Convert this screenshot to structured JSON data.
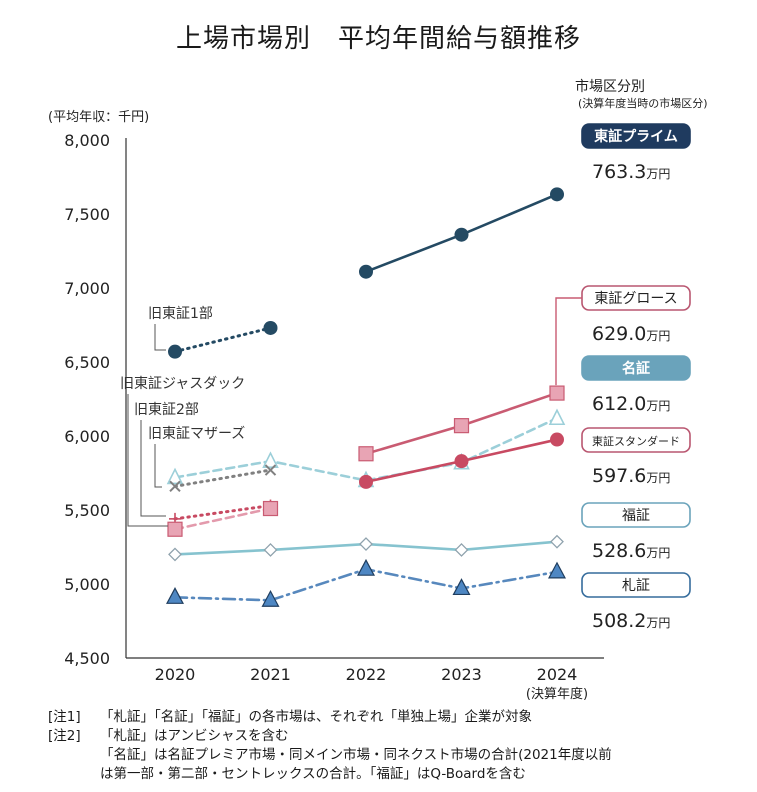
{
  "page": {
    "title": "上場市場別　平均年間給与額推移",
    "notes": [
      {
        "tag": "[注1]",
        "text": "「札証」「名証」「福証」の各市場は、それぞれ「単独上場」企業が対象"
      },
      {
        "tag": "[注2]",
        "text": "「札証」はアンビシャスを含む"
      },
      {
        "tag": "",
        "text": "「名証」は名証プレミア市場・同メイン市場・同ネクスト市場の合計(2021年度以前"
      },
      {
        "tag": "",
        "text": "は第一部・第二部・セントレックスの合計。「福証」はQ-Boardを含む"
      }
    ]
  },
  "chart_data": {
    "type": "line",
    "ylabel": "(平均年収：千円)",
    "xlabel_note": "(決算年度)",
    "legend_title": "市場区分別",
    "legend_subtitle": "(決算年度当時の市場区分)",
    "ylim": [
      4500,
      8000
    ],
    "yticks": [
      8000,
      7500,
      7000,
      6500,
      6000,
      5500,
      5000,
      4500
    ],
    "ytick_labels": [
      "8,000",
      "7,500",
      "7,000",
      "6,500",
      "6,000",
      "5,500",
      "5,000",
      "4,500"
    ],
    "categories": [
      "2020",
      "2021",
      "2022",
      "2023",
      "2024"
    ],
    "unit": "万円",
    "series": [
      {
        "name": "東証プライム",
        "color": "#244a63",
        "values": [
          null,
          null,
          7110,
          7360,
          7633
        ],
        "latest": "763.3",
        "line": "solid",
        "marker": "circle"
      },
      {
        "name": "東証グロース",
        "color": "#c95b72",
        "values": [
          null,
          null,
          5880,
          6070,
          6290
        ],
        "latest": "629.0",
        "line": "solid",
        "marker": "square"
      },
      {
        "name": "名証",
        "color": "#9ccfd9",
        "values": [
          5720,
          5830,
          5700,
          5820,
          6120
        ],
        "latest": "612.0",
        "line": "dashed",
        "marker": "triangle-open"
      },
      {
        "name": "東証スタンダード",
        "color": "#c84a62",
        "values": [
          null,
          null,
          5690,
          5830,
          5976
        ],
        "latest": "597.6",
        "line": "solid",
        "marker": "circle"
      },
      {
        "name": "福証",
        "color": "#86c3cf",
        "values": [
          5200,
          5230,
          5270,
          5230,
          5286
        ],
        "latest": "528.6",
        "line": "solid",
        "marker": "diamond-open"
      },
      {
        "name": "札証",
        "color": "#5788bd",
        "values": [
          4910,
          4890,
          5100,
          4970,
          5082
        ],
        "latest": "508.2",
        "line": "dashdot",
        "marker": "triangle"
      },
      {
        "name": "旧東証1部",
        "color": "#244a63",
        "values": [
          6570,
          6730,
          null,
          null,
          null
        ],
        "line": "dotted",
        "marker": "circle"
      },
      {
        "name": "旧東証ジャスダック",
        "color": "#c84a62",
        "values": [
          5440,
          5530,
          null,
          null,
          null
        ],
        "line": "dotted",
        "marker": "plus"
      },
      {
        "name": "旧東証2部",
        "color": "#808080",
        "values": [
          5660,
          5770,
          null,
          null,
          null
        ],
        "line": "dotted",
        "marker": "x"
      },
      {
        "name": "旧東証マザーズ",
        "color": "#e39aac",
        "values": [
          5370,
          5510,
          null,
          null,
          null
        ],
        "line": "dashed",
        "marker": "square"
      }
    ]
  }
}
